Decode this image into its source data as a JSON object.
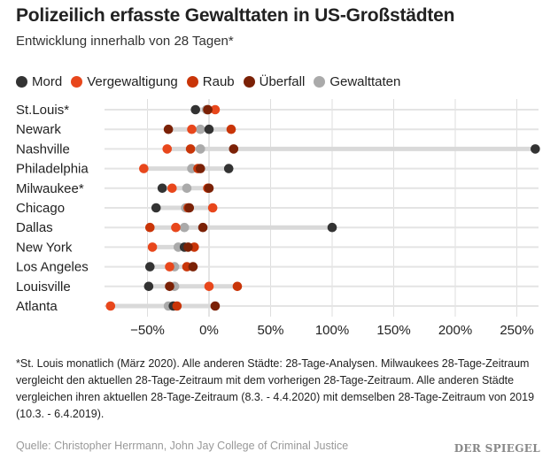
{
  "title": "Polizeilich erfasste Gewalttaten in US-Großstädten",
  "subtitle": "Entwicklung innerhalb von 28 Tagen*",
  "note": "*St. Louis monatlich (März 2020). Alle anderen Städte: 28-Tage-Analysen. Milwaukees 28-Tage-Zeitraum vergleicht den aktuellen 28-Tage-Zeitraum mit dem vorherigen 28-Tage-Zeitraum. Alle anderen Städte vergleichen ihren aktuellen 28-Tage-Zeitraum (8.3. - 4.4.2020) mit demselben 28-Tage-Zeitraum von 2019 (10.3. - 6.4.2019).",
  "source": "Quelle: Christopher Herrmann, John Jay College of Criminal Justice",
  "logo": "DER SPIEGEL",
  "chart_data": {
    "type": "scatter",
    "subtype": "dot-plot",
    "categories": [
      "St.Louis*",
      "Newark",
      "Nashville",
      "Philadelphia",
      "Milwaukee*",
      "Chicago",
      "Dallas",
      "New York",
      "Los Angeles",
      "Louisville",
      "Atlanta"
    ],
    "xlim": [
      -84,
      268
    ],
    "xticks": [
      -50,
      0,
      50,
      100,
      150,
      200,
      250
    ],
    "xtick_labels": [
      "−50%",
      "0%",
      "50%",
      "100%",
      "150%",
      "200%",
      "250%"
    ],
    "grid": true,
    "legend_position": "top-left",
    "series": [
      {
        "name": "Mord",
        "color": "#333333",
        "values": [
          -11,
          0,
          265,
          16,
          -38,
          -43,
          100,
          -20,
          -48,
          -49,
          -29
        ]
      },
      {
        "name": "Vergewaltigung",
        "color": "#e8471c",
        "values": [
          5,
          -14,
          -34,
          -53,
          -30,
          3,
          -27,
          -46,
          -32,
          0,
          -80
        ]
      },
      {
        "name": "Raub",
        "color": "#c93508",
        "values": [
          -1,
          18,
          -15,
          -9,
          -1,
          -17,
          -48,
          -12,
          -18,
          23,
          -26
        ]
      },
      {
        "name": "Überfall",
        "color": "#7b2106",
        "values": [
          -1,
          -33,
          20,
          -7,
          0,
          -16,
          -5,
          -17,
          -13,
          -32,
          5
        ]
      },
      {
        "name": "Gewalttaten",
        "color": "#aaaaaa",
        "values": [
          -2,
          -7,
          -7,
          -14,
          -18,
          -19,
          -20,
          -25,
          -28,
          -28,
          -33
        ]
      }
    ]
  }
}
